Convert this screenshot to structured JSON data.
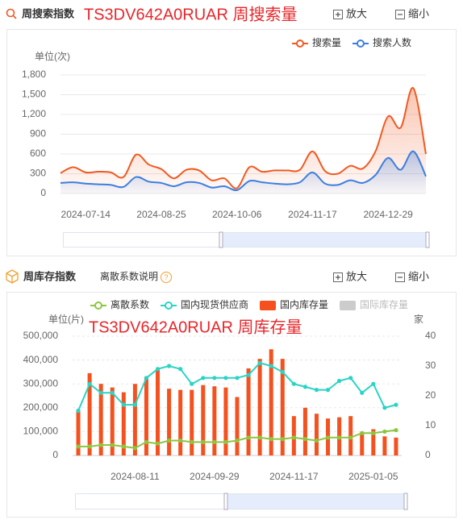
{
  "panels": [
    {
      "heading": "周搜索指数",
      "zoom_in": "放大",
      "zoom_out": "缩小"
    },
    {
      "heading": "周库存指数",
      "note": "离散系数说明",
      "zoom_in": "放大",
      "zoom_out": "缩小"
    }
  ],
  "chart_data": [
    {
      "type": "line",
      "title": "TS3DV642A0RUAR 周搜索量",
      "y_label": "单位(次)",
      "categories": [
        null,
        null,
        "2024-07-14",
        null,
        null,
        null,
        null,
        null,
        "2024-08-25",
        null,
        null,
        null,
        null,
        null,
        "2024-10-06",
        null,
        null,
        null,
        null,
        null,
        "2024-11-17",
        null,
        null,
        null,
        null,
        null,
        "2024-12-29",
        null,
        null,
        null
      ],
      "series": [
        {
          "name": "搜索量",
          "color": "#f05a22",
          "values": [
            310,
            400,
            320,
            330,
            320,
            250,
            590,
            440,
            370,
            230,
            360,
            350,
            200,
            230,
            80,
            400,
            330,
            350,
            350,
            360,
            640,
            340,
            300,
            420,
            380,
            640,
            1170,
            1000,
            1600,
            600
          ]
        },
        {
          "name": "搜索人数",
          "color": "#3c7fe0",
          "values": [
            160,
            170,
            150,
            140,
            130,
            100,
            250,
            180,
            160,
            110,
            170,
            160,
            90,
            110,
            50,
            190,
            170,
            150,
            140,
            170,
            320,
            150,
            130,
            200,
            160,
            280,
            540,
            360,
            640,
            260
          ]
        }
      ],
      "ylim": [
        0,
        1800
      ],
      "yticks": [
        0,
        300,
        600,
        900,
        {
          "value": 1200,
          "label": "1,200"
        },
        {
          "value": 1500,
          "label": "1,500"
        },
        {
          "value": 1800,
          "label": "1,800"
        }
      ],
      "grid": true,
      "smooth": true,
      "area": true,
      "legend": "top-right"
    },
    {
      "type": "combo",
      "title": "TS3DV642A0RUAR 周库存量",
      "y_label": "单位(片)",
      "y2_label": "家",
      "categories": [
        null,
        null,
        null,
        null,
        null,
        "2024-08-11",
        null,
        null,
        null,
        null,
        null,
        null,
        "2024-09-29",
        null,
        null,
        null,
        null,
        null,
        null,
        "2024-11-17",
        null,
        null,
        null,
        null,
        null,
        null,
        "2025-01-05",
        null,
        null
      ],
      "series": [
        {
          "name": "离散系数",
          "color": "#8cc63f",
          "type": "line",
          "axis": "y2",
          "values": [
            3,
            3,
            3.5,
            3.5,
            3,
            2.5,
            4.5,
            4,
            5,
            5,
            4.5,
            4.5,
            4.5,
            4.5,
            5,
            6,
            6,
            5.5,
            5.5,
            6,
            5.5,
            5,
            6,
            6,
            6,
            7.5,
            7.5,
            8,
            8.5
          ]
        },
        {
          "name": "国内现货供应商",
          "color": "#2ad4c4",
          "type": "line",
          "axis": "y2",
          "values": [
            15,
            24,
            21,
            21,
            17,
            17,
            26,
            29,
            30,
            29,
            24,
            26,
            26,
            26,
            26,
            27,
            31,
            30,
            28,
            24,
            23,
            22,
            22,
            25,
            26,
            21,
            24,
            16,
            17
          ]
        },
        {
          "name": "国内库存量",
          "color": "#f4511e",
          "type": "bar",
          "values": [
            190000,
            345000,
            300000,
            285000,
            265000,
            300000,
            330000,
            365000,
            280000,
            275000,
            275000,
            295000,
            290000,
            285000,
            245000,
            365000,
            405000,
            445000,
            405000,
            165000,
            200000,
            175000,
            155000,
            160000,
            165000,
            95000,
            110000,
            80000,
            75000
          ]
        },
        {
          "name": "国际库存量",
          "color": "#cccccc",
          "type": "bar"
        }
      ],
      "ylim": [
        0,
        500000
      ],
      "yticks": [
        0,
        {
          "value": 100000,
          "label": "100,000"
        },
        {
          "value": 200000,
          "label": "200,000"
        },
        {
          "value": 300000,
          "label": "300,000"
        },
        {
          "value": 400000,
          "label": "400,000"
        },
        {
          "value": 500000,
          "label": "500,000"
        }
      ],
      "y2lim": [
        0,
        40
      ],
      "y2ticks": [
        0,
        10,
        20,
        30,
        40
      ],
      "grid": true,
      "smooth": false,
      "area": false,
      "legend": "top"
    }
  ]
}
